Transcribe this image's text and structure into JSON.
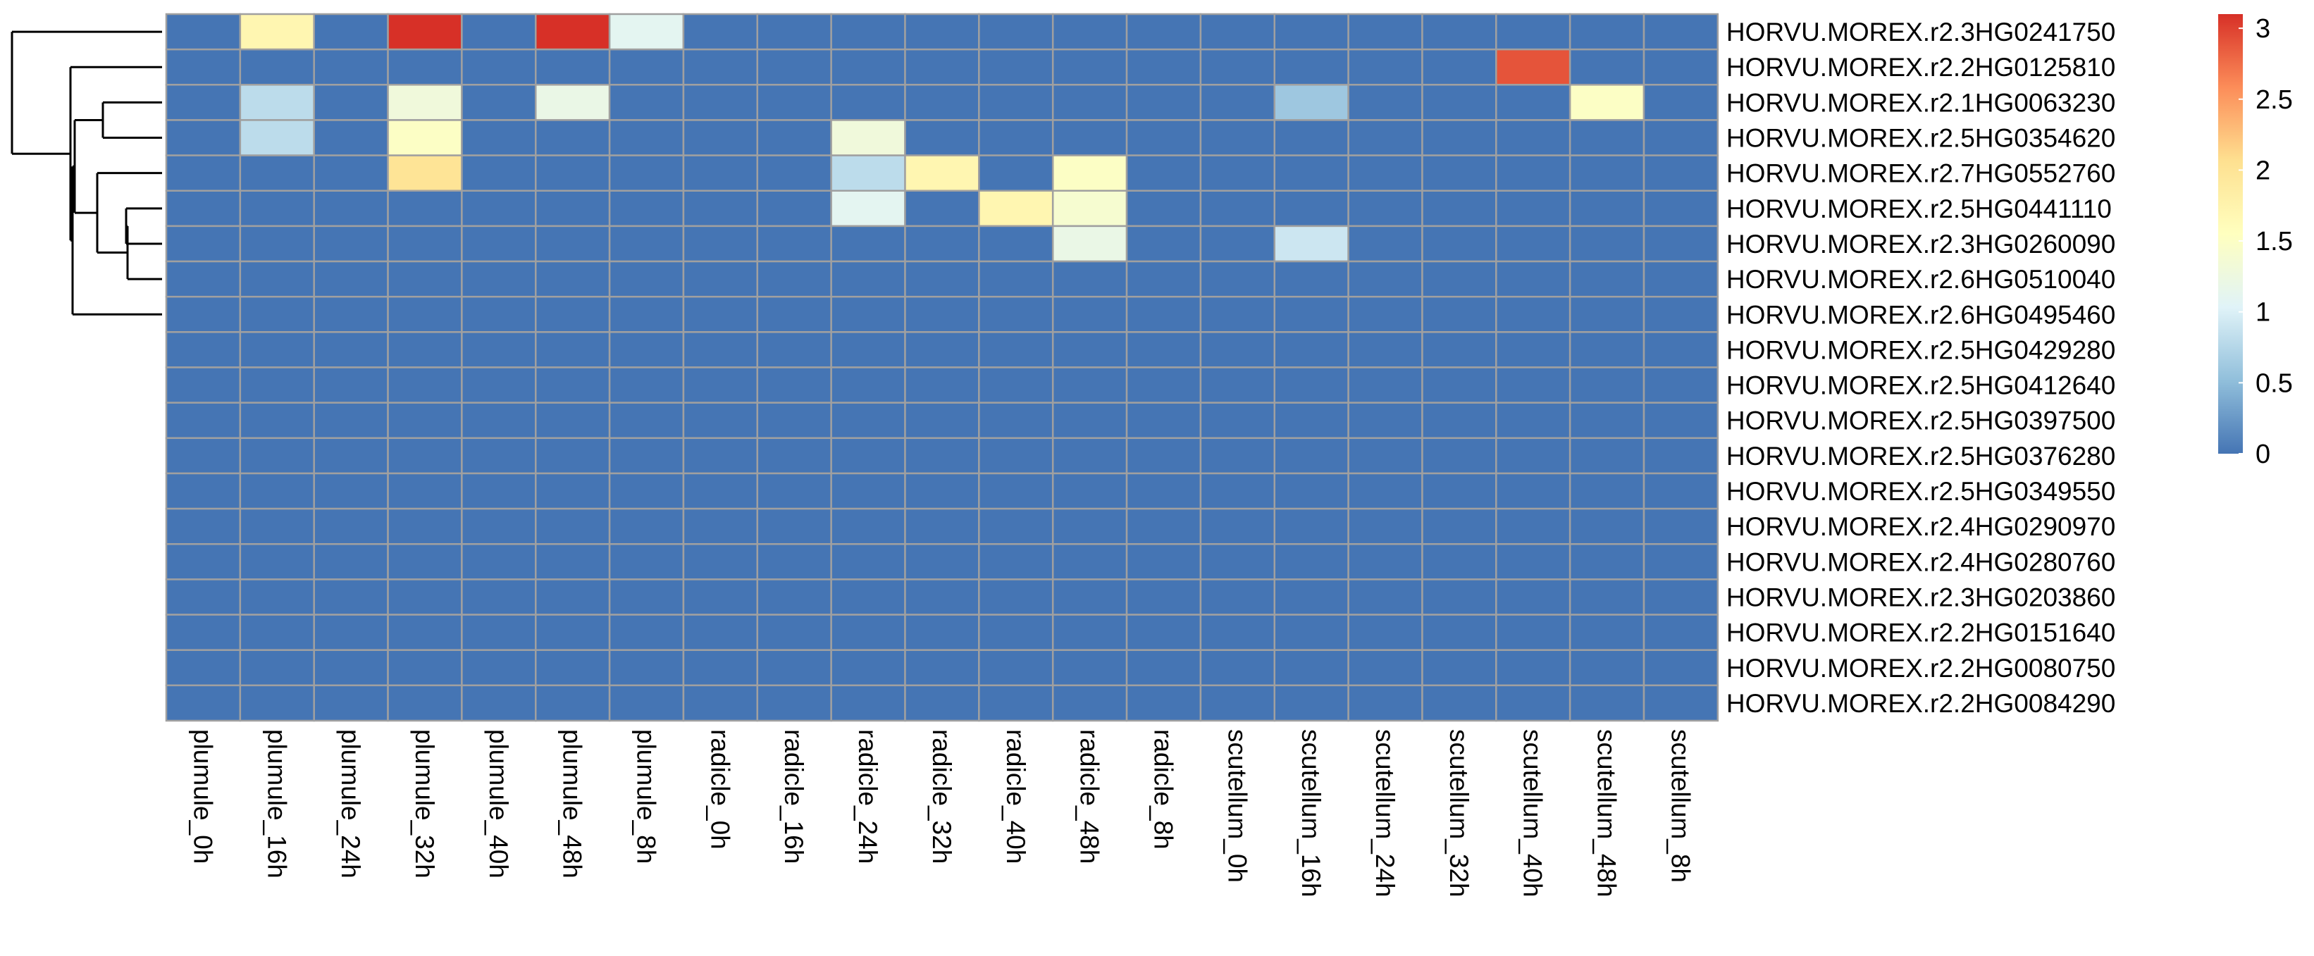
{
  "chart_data": {
    "type": "heatmap",
    "title": "",
    "xlabel": "",
    "ylabel": "",
    "columns": [
      "plumule_0h",
      "plumule_16h",
      "plumule_24h",
      "plumule_32h",
      "plumule_40h",
      "plumule_48h",
      "plumule_8h",
      "radicle_0h",
      "radicle_16h",
      "radicle_24h",
      "radicle_32h",
      "radicle_40h",
      "radicle_48h",
      "radicle_8h",
      "scutellum_0h",
      "scutellum_16h",
      "scutellum_24h",
      "scutellum_32h",
      "scutellum_40h",
      "scutellum_48h",
      "scutellum_8h"
    ],
    "rows": [
      "HORVU.MOREX.r2.3HG0241750",
      "HORVU.MOREX.r2.2HG0125810",
      "HORVU.MOREX.r2.1HG0063230",
      "HORVU.MOREX.r2.5HG0354620",
      "HORVU.MOREX.r2.7HG0552760",
      "HORVU.MOREX.r2.5HG0441110",
      "HORVU.MOREX.r2.3HG0260090",
      "HORVU.MOREX.r2.6HG0510040",
      "HORVU.MOREX.r2.6HG0495460",
      "HORVU.MOREX.r2.5HG0429280",
      "HORVU.MOREX.r2.5HG0412640",
      "HORVU.MOREX.r2.5HG0397500",
      "HORVU.MOREX.r2.5HG0376280",
      "HORVU.MOREX.r2.5HG0349550",
      "HORVU.MOREX.r2.4HG0290970",
      "HORVU.MOREX.r2.4HG0280760",
      "HORVU.MOREX.r2.3HG0203860",
      "HORVU.MOREX.r2.2HG0151640",
      "HORVU.MOREX.r2.2HG0080750",
      "HORVU.MOREX.r2.2HG0084290"
    ],
    "values": [
      [
        0,
        1.7,
        0,
        3.1,
        0,
        3.1,
        1.1,
        0,
        0,
        0,
        0,
        0,
        0,
        0,
        0,
        0,
        0,
        0,
        0,
        0,
        0
      ],
      [
        0,
        0,
        0,
        0,
        0,
        0,
        0,
        0,
        0,
        0,
        0,
        0,
        0,
        0,
        0,
        0,
        0,
        0,
        2.9,
        0,
        0
      ],
      [
        0,
        0.8,
        0,
        1.3,
        0,
        1.2,
        0,
        0,
        0,
        0,
        0,
        0,
        0,
        0,
        0,
        0.6,
        0,
        0,
        0,
        1.5,
        0
      ],
      [
        0,
        0.8,
        0,
        1.5,
        0,
        0,
        0,
        0,
        0,
        1.3,
        0,
        0,
        0,
        0,
        0,
        0,
        0,
        0,
        0,
        0,
        0
      ],
      [
        0,
        0,
        0,
        2.0,
        0,
        0,
        0,
        0,
        0,
        0.8,
        1.7,
        0,
        1.5,
        0,
        0,
        0,
        0,
        0,
        0,
        0,
        0
      ],
      [
        0,
        0,
        0,
        0,
        0,
        0,
        0,
        0,
        0,
        1.1,
        0,
        1.7,
        1.4,
        0,
        0,
        0,
        0,
        0,
        0,
        0,
        0
      ],
      [
        0,
        0,
        0,
        0,
        0,
        0,
        0,
        0,
        0,
        0,
        0,
        0,
        1.2,
        0,
        0,
        0.9,
        0,
        0,
        0,
        0,
        0
      ],
      [
        0,
        0,
        0,
        0,
        0,
        0,
        0,
        0,
        0,
        0,
        0,
        0,
        0,
        0,
        0,
        0,
        0,
        0,
        0,
        0,
        0
      ],
      [
        0,
        0,
        0,
        0,
        0,
        0,
        0,
        0,
        0,
        0,
        0,
        0,
        0,
        0,
        0,
        0,
        0,
        0,
        0,
        0,
        0
      ],
      [
        0,
        0,
        0,
        0,
        0,
        0,
        0,
        0,
        0,
        0,
        0,
        0,
        0,
        0,
        0,
        0,
        0,
        0,
        0,
        0,
        0
      ],
      [
        0,
        0,
        0,
        0,
        0,
        0,
        0,
        0,
        0,
        0,
        0,
        0,
        0,
        0,
        0,
        0,
        0,
        0,
        0,
        0,
        0
      ],
      [
        0,
        0,
        0,
        0,
        0,
        0,
        0,
        0,
        0,
        0,
        0,
        0,
        0,
        0,
        0,
        0,
        0,
        0,
        0,
        0,
        0
      ],
      [
        0,
        0,
        0,
        0,
        0,
        0,
        0,
        0,
        0,
        0,
        0,
        0,
        0,
        0,
        0,
        0,
        0,
        0,
        0,
        0,
        0
      ],
      [
        0,
        0,
        0,
        0,
        0,
        0,
        0,
        0,
        0,
        0,
        0,
        0,
        0,
        0,
        0,
        0,
        0,
        0,
        0,
        0,
        0
      ],
      [
        0,
        0,
        0,
        0,
        0,
        0,
        0,
        0,
        0,
        0,
        0,
        0,
        0,
        0,
        0,
        0,
        0,
        0,
        0,
        0,
        0
      ],
      [
        0,
        0,
        0,
        0,
        0,
        0,
        0,
        0,
        0,
        0,
        0,
        0,
        0,
        0,
        0,
        0,
        0,
        0,
        0,
        0,
        0
      ],
      [
        0,
        0,
        0,
        0,
        0,
        0,
        0,
        0,
        0,
        0,
        0,
        0,
        0,
        0,
        0,
        0,
        0,
        0,
        0,
        0,
        0
      ],
      [
        0,
        0,
        0,
        0,
        0,
        0,
        0,
        0,
        0,
        0,
        0,
        0,
        0,
        0,
        0,
        0,
        0,
        0,
        0,
        0,
        0
      ],
      [
        0,
        0,
        0,
        0,
        0,
        0,
        0,
        0,
        0,
        0,
        0,
        0,
        0,
        0,
        0,
        0,
        0,
        0,
        0,
        0,
        0
      ],
      [
        0,
        0,
        0,
        0,
        0,
        0,
        0,
        0,
        0,
        0,
        0,
        0,
        0,
        0,
        0,
        0,
        0,
        0,
        0,
        0,
        0
      ]
    ],
    "value_range": [
      0,
      3.1
    ],
    "colorbar": {
      "ticks": [
        0,
        0.5,
        1,
        1.5,
        2,
        2.5,
        3
      ],
      "tick_labels": [
        "0",
        "0.5",
        "1",
        "1.5",
        "2",
        "2.5",
        "3"
      ],
      "colors": [
        "#4575b4",
        "#91bfdb",
        "#e0f3f8",
        "#ffffbf",
        "#fee090",
        "#fc8d59",
        "#d73027"
      ]
    },
    "cell_border_color": "#a0a0a0",
    "row_dendrogram": true,
    "legend": "right"
  }
}
